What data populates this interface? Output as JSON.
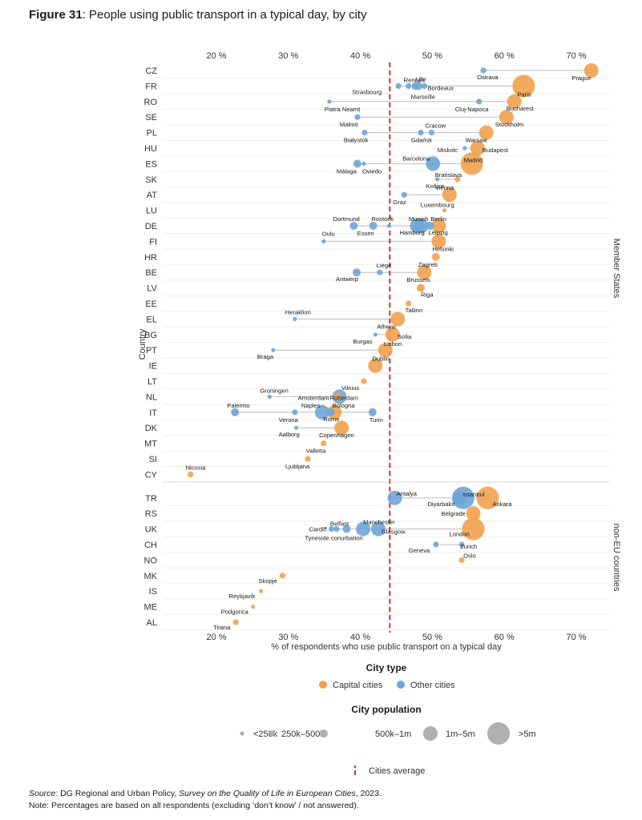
{
  "figure": {
    "number": "Figure 31",
    "title": ": People using public transport in a typical day, by city"
  },
  "footer": {
    "source_label": "Source:",
    "source_text": " DG Regional and Urban Policy, ",
    "source_title": "Survey on the Quality of Life in European Cities",
    "source_year": ", 2023.",
    "note": "Note: Percentages are based on all respondents (excluding ‘don’t know’ / not answered)."
  },
  "chart_data": {
    "type": "scatter",
    "title": "People using public transport in a typical day, by city",
    "xlabel": "% of respondents who use public transport on a typical day",
    "ylabel": "Country",
    "xlim": [
      14,
      74
    ],
    "xticks": [
      20,
      30,
      40,
      50,
      60,
      70
    ],
    "tick_suffix": " %",
    "cities_average": 43.2,
    "average_label": "Cities average",
    "group_labels": [
      "Member States",
      "non-EU countries"
    ],
    "colors": {
      "capital": "#F0A14D",
      "other": "#6FA5D6",
      "average": "#C8312B",
      "connector": "#bdbdbd",
      "sizelegend": "#b0b0b0"
    },
    "legend": {
      "type_title": "City type",
      "type_items": [
        {
          "key": "capital",
          "label": "Capital cities"
        },
        {
          "key": "other",
          "label": "Other cities"
        }
      ],
      "size_title": "City population",
      "size_items": [
        {
          "size": 1,
          "label": "<250k"
        },
        {
          "size": 2,
          "label": "250k–500k"
        },
        {
          "size": 3,
          "label": "500k–1m"
        },
        {
          "size": 4,
          "label": "1m–5m"
        },
        {
          "size": 5,
          "label": ">5m"
        }
      ]
    },
    "series": [
      {
        "name": "Member States",
        "countries": [
          {
            "code": "CZ",
            "cities": [
              {
                "name": "Prague",
                "value": 71.2,
                "type": "capital",
                "size": 4
              },
              {
                "name": "Ostrava",
                "value": 56.2,
                "type": "other",
                "size": 2
              }
            ]
          },
          {
            "code": "FR",
            "cities": [
              {
                "name": "Paris",
                "value": 61.8,
                "type": "capital",
                "size": 5
              },
              {
                "name": "Rennes",
                "value": 45.8,
                "type": "other",
                "size": 2
              },
              {
                "name": "Lille",
                "value": 47.2,
                "type": "other",
                "size": 3
              },
              {
                "name": "Bordeaux",
                "value": 48.0,
                "type": "other",
                "size": 2
              },
              {
                "name": "Strasbourg",
                "value": 44.4,
                "type": "other",
                "size": 2
              },
              {
                "name": "Marseille",
                "value": 46.8,
                "type": "other",
                "size": 3
              }
            ]
          },
          {
            "code": "RO",
            "cities": [
              {
                "name": "Bucharest",
                "value": 60.5,
                "type": "capital",
                "size": 4
              },
              {
                "name": "Piatra Neamț",
                "value": 34.8,
                "type": "other",
                "size": 1
              },
              {
                "name": "Cluj-Napoca",
                "value": 55.6,
                "type": "other",
                "size": 2
              }
            ]
          },
          {
            "code": "SE",
            "cities": [
              {
                "name": "Stockholm",
                "value": 59.4,
                "type": "capital",
                "size": 4
              },
              {
                "name": "Malmö",
                "value": 38.7,
                "type": "other",
                "size": 2
              }
            ]
          },
          {
            "code": "PL",
            "cities": [
              {
                "name": "Warsaw",
                "value": 56.6,
                "type": "capital",
                "size": 4
              },
              {
                "name": "Białystok",
                "value": 39.7,
                "type": "other",
                "size": 2
              },
              {
                "name": "Gdańsk",
                "value": 47.5,
                "type": "other",
                "size": 2
              },
              {
                "name": "Cracow",
                "value": 49.0,
                "type": "other",
                "size": 2
              }
            ]
          },
          {
            "code": "HU",
            "cities": [
              {
                "name": "Budapest",
                "value": 55.4,
                "type": "capital",
                "size": 4
              },
              {
                "name": "Miskolc",
                "value": 53.6,
                "type": "other",
                "size": 1
              }
            ]
          },
          {
            "code": "ES",
            "cities": [
              {
                "name": "Madrid",
                "value": 54.6,
                "type": "capital",
                "size": 5
              },
              {
                "name": "Málaga",
                "value": 38.7,
                "type": "other",
                "size": 3
              },
              {
                "name": "Oviedo",
                "value": 39.6,
                "type": "other",
                "size": 1
              },
              {
                "name": "Barcelona",
                "value": 49.2,
                "type": "other",
                "size": 4
              }
            ]
          },
          {
            "code": "SK",
            "cities": [
              {
                "name": "Bratislava",
                "value": 52.6,
                "type": "capital",
                "size": 2
              },
              {
                "name": "Košice",
                "value": 49.8,
                "type": "other",
                "size": 1
              }
            ]
          },
          {
            "code": "AT",
            "cities": [
              {
                "name": "Vienna",
                "value": 51.5,
                "type": "capital",
                "size": 4
              },
              {
                "name": "Graz",
                "value": 45.2,
                "type": "other",
                "size": 2
              }
            ]
          },
          {
            "code": "LU",
            "cities": [
              {
                "name": "Luxembourg",
                "value": 50.8,
                "type": "capital",
                "size": 1
              }
            ]
          },
          {
            "code": "DE",
            "cities": [
              {
                "name": "Berlin",
                "value": 50.0,
                "type": "capital",
                "size": 4
              },
              {
                "name": "Dortmund",
                "value": 38.2,
                "type": "other",
                "size": 3
              },
              {
                "name": "Essen",
                "value": 40.9,
                "type": "other",
                "size": 3
              },
              {
                "name": "Rostock",
                "value": 43.1,
                "type": "other",
                "size": 1
              },
              {
                "name": "Hamburg",
                "value": 47.0,
                "type": "other",
                "size": 4
              },
              {
                "name": "Munich",
                "value": 47.6,
                "type": "other",
                "size": 4
              },
              {
                "name": "Leipzig",
                "value": 48.8,
                "type": "other",
                "size": 3
              }
            ]
          },
          {
            "code": "FI",
            "cities": [
              {
                "name": "Helsinki",
                "value": 50.0,
                "type": "capital",
                "size": 4
              },
              {
                "name": "Oulu",
                "value": 34.0,
                "type": "other",
                "size": 1
              }
            ]
          },
          {
            "code": "HR",
            "cities": [
              {
                "name": "Zagreb",
                "value": 49.6,
                "type": "capital",
                "size": 3
              }
            ]
          },
          {
            "code": "BE",
            "cities": [
              {
                "name": "Brussels",
                "value": 48.0,
                "type": "capital",
                "size": 4
              },
              {
                "name": "Antwerp",
                "value": 38.6,
                "type": "other",
                "size": 3
              },
              {
                "name": "Liège",
                "value": 41.8,
                "type": "other",
                "size": 2
              }
            ]
          },
          {
            "code": "LV",
            "cities": [
              {
                "name": "Riga",
                "value": 47.5,
                "type": "capital",
                "size": 3
              }
            ]
          },
          {
            "code": "EE",
            "cities": [
              {
                "name": "Tallinn",
                "value": 45.8,
                "type": "capital",
                "size": 2
              }
            ]
          },
          {
            "code": "EL",
            "cities": [
              {
                "name": "Athens",
                "value": 44.3,
                "type": "capital",
                "size": 4
              },
              {
                "name": "Heraklion",
                "value": 30.0,
                "type": "other",
                "size": 1
              }
            ]
          },
          {
            "code": "BG",
            "cities": [
              {
                "name": "Sofia",
                "value": 43.6,
                "type": "capital",
                "size": 4
              },
              {
                "name": "Burgas",
                "value": 41.2,
                "type": "other",
                "size": 1
              }
            ]
          },
          {
            "code": "PT",
            "cities": [
              {
                "name": "Lisbon",
                "value": 42.6,
                "type": "capital",
                "size": 4
              },
              {
                "name": "Braga",
                "value": 27.0,
                "type": "other",
                "size": 1
              }
            ]
          },
          {
            "code": "IE",
            "cities": [
              {
                "name": "Dublin",
                "value": 41.2,
                "type": "capital",
                "size": 4
              }
            ]
          },
          {
            "code": "LT",
            "cities": [
              {
                "name": "Vilnius",
                "value": 39.6,
                "type": "capital",
                "size": 2
              }
            ]
          },
          {
            "code": "NL",
            "cities": [
              {
                "name": "Amsterdam",
                "value": 36.0,
                "type": "capital",
                "size": 3
              },
              {
                "name": "Groningen",
                "value": 26.5,
                "type": "other",
                "size": 1
              },
              {
                "name": "Rotterdam",
                "value": 36.2,
                "type": "other",
                "size": 4
              }
            ]
          },
          {
            "code": "IT",
            "cities": [
              {
                "name": "Rome",
                "value": 35.5,
                "type": "capital",
                "size": 4
              },
              {
                "name": "Palermo",
                "value": 21.7,
                "type": "other",
                "size": 3
              },
              {
                "name": "Verona",
                "value": 30.0,
                "type": "other",
                "size": 2
              },
              {
                "name": "Naples",
                "value": 33.8,
                "type": "other",
                "size": 4
              },
              {
                "name": "Bologna",
                "value": 35.0,
                "type": "other",
                "size": 3
              },
              {
                "name": "Turin",
                "value": 40.8,
                "type": "other",
                "size": 3
              }
            ]
          },
          {
            "code": "DK",
            "cities": [
              {
                "name": "Copenhagen",
                "value": 36.5,
                "type": "capital",
                "size": 4
              },
              {
                "name": "Aalborg",
                "value": 30.2,
                "type": "other",
                "size": 1
              }
            ]
          },
          {
            "code": "MT",
            "cities": [
              {
                "name": "Valletta",
                "value": 34.0,
                "type": "capital",
                "size": 2
              }
            ]
          },
          {
            "code": "SI",
            "cities": [
              {
                "name": "Ljubljana",
                "value": 31.8,
                "type": "capital",
                "size": 2
              }
            ]
          },
          {
            "code": "CY",
            "cities": [
              {
                "name": "Nicosia",
                "value": 15.5,
                "type": "capital",
                "size": 2
              }
            ]
          }
        ]
      },
      {
        "name": "non-EU countries",
        "countries": [
          {
            "code": "TR",
            "cities": [
              {
                "name": "Ankara",
                "value": 56.8,
                "type": "capital",
                "size": 5
              },
              {
                "name": "Antalya",
                "value": 43.9,
                "type": "other",
                "size": 4
              },
              {
                "name": "Diyarbakir",
                "value": 52.9,
                "type": "other",
                "size": 4
              },
              {
                "name": "Istanbul",
                "value": 53.4,
                "type": "other",
                "size": 5
              }
            ]
          },
          {
            "code": "RS",
            "cities": [
              {
                "name": "Belgrade",
                "value": 54.8,
                "type": "capital",
                "size": 4
              }
            ]
          },
          {
            "code": "UK",
            "cities": [
              {
                "name": "London",
                "value": 54.8,
                "type": "capital",
                "size": 5
              },
              {
                "name": "Cardiff",
                "value": 35.1,
                "type": "other",
                "size": 2
              },
              {
                "name": "Belfast",
                "value": 35.8,
                "type": "other",
                "size": 2
              },
              {
                "name": "Manchester",
                "value": 39.5,
                "type": "other",
                "size": 4
              },
              {
                "name": "Tyneside conurbation",
                "value": 37.2,
                "type": "other",
                "size": 3
              },
              {
                "name": "Glasgow",
                "value": 41.6,
                "type": "other",
                "size": 4
              }
            ]
          },
          {
            "code": "CH",
            "cities": [
              {
                "name": "Zurich",
                "value": 53.2,
                "type": "other",
                "size": 2
              },
              {
                "name": "Geneva",
                "value": 49.6,
                "type": "other",
                "size": 2
              }
            ]
          },
          {
            "code": "NO",
            "cities": [
              {
                "name": "Oslo",
                "value": 53.2,
                "type": "capital",
                "size": 2
              }
            ]
          },
          {
            "code": "MK",
            "cities": [
              {
                "name": "Skopje",
                "value": 28.3,
                "type": "capital",
                "size": 2
              }
            ]
          },
          {
            "code": "IS",
            "cities": [
              {
                "name": "Reykjavík",
                "value": 25.3,
                "type": "capital",
                "size": 1
              }
            ]
          },
          {
            "code": "ME",
            "cities": [
              {
                "name": "Podgorica",
                "value": 24.2,
                "type": "capital",
                "size": 1
              }
            ]
          },
          {
            "code": "AL",
            "cities": [
              {
                "name": "Tirana",
                "value": 21.8,
                "type": "capital",
                "size": 2
              }
            ]
          }
        ]
      }
    ]
  }
}
